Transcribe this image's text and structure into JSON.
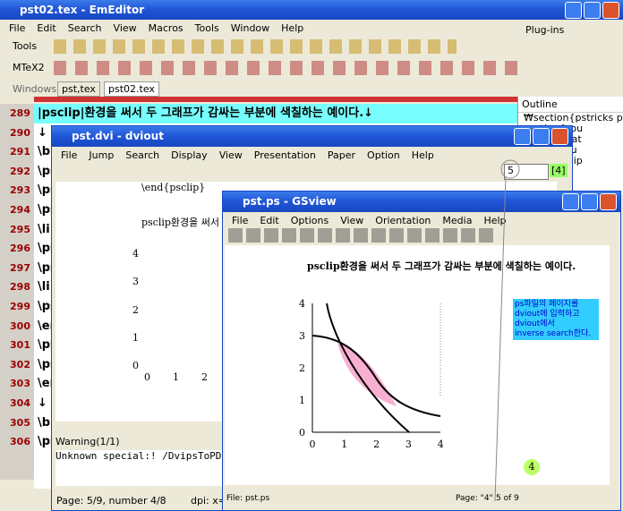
{
  "emeditor": {
    "title": "pst02.tex - EmEditor",
    "menu": [
      "File",
      "Edit",
      "Search",
      "View",
      "Macros",
      "Tools",
      "Window",
      "Help"
    ],
    "toolbars": [
      "Tools",
      "MTeX2",
      "Windows"
    ],
    "plugins": "Plug-ins",
    "tabs": [
      "pst,tex",
      "pst02.tex"
    ],
    "line_numbers": [
      "289",
      "290",
      "291",
      "292",
      "293",
      "294",
      "295",
      "296",
      "297",
      "298",
      "299",
      "300",
      "301",
      "302",
      "303",
      "304",
      "305",
      "306"
    ],
    "lines": [
      "|psclip|환경을 써서 두 그래프가 감싸는 부분에 색칠하는 예이다.↓",
      "↓",
      "\\b",
      "\\ps",
      "\\ps",
      "\\ps",
      "\\li",
      "\\ps",
      "\\ps",
      "\\li",
      "\\ps",
      "\\er",
      "\\ps",
      "\\ps",
      "\\er",
      "↓",
      "\\b",
      "\\ps"
    ],
    "outline": {
      "title": "Outline",
      "items": [
        "₩section{pstricks p",
        "section{sou",
        "section{dat",
        "section{cu",
        "section{clip"
      ]
    }
  },
  "dviout": {
    "title": "pst.dvi - dviout",
    "menu": [
      "File",
      "Jump",
      "Search",
      "Display",
      "View",
      "Presentation",
      "Paper",
      "Option",
      "Help"
    ],
    "page_input": "5",
    "page_marker": "[4]",
    "content": [
      "\\end{psclip}",
      "psclip환경을 써서"
    ],
    "y_labels": [
      "4",
      "3",
      "2",
      "1",
      "0"
    ],
    "x_labels": [
      "0",
      "1",
      "2"
    ],
    "warning_title": "Warning(1/1)",
    "warning": "Unknown special:! /DvipsToPDF { 7",
    "status": [
      "Page: 5/9, number 4/8",
      "dpi: x=6"
    ]
  },
  "gsview": {
    "title": "pst.ps - GSview",
    "menu": [
      "File",
      "Edit",
      "Options",
      "View",
      "Orientation",
      "Media",
      "Help"
    ],
    "heading": "psclip환경을 써서 두 그래프가 감싸는 부분에 색칠하는 예이다.",
    "plot": {
      "xticks": [
        "0",
        "1",
        "2",
        "3",
        "4"
      ],
      "yticks": [
        "0",
        "1",
        "2",
        "3",
        "4"
      ]
    },
    "note": [
      "ps파일의 페이지를",
      "dviout에 입력하고",
      "dviout에서",
      "inverse search한다."
    ],
    "marker": "4",
    "status_file": "File: pst.ps",
    "status_page": [
      "Page: \"4\"",
      "5 of 9"
    ]
  }
}
